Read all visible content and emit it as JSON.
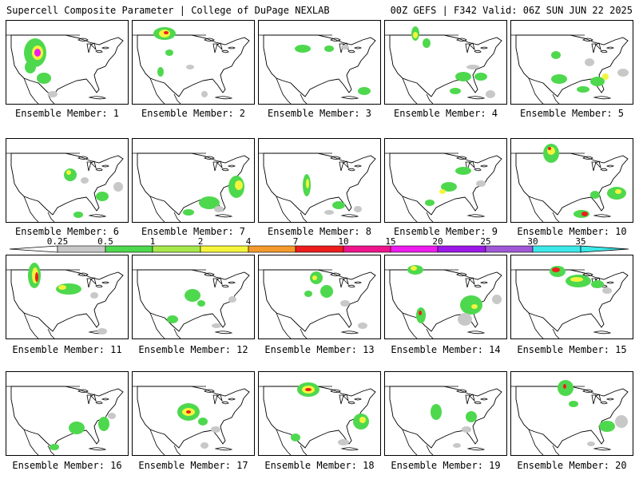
{
  "header": {
    "title": "Supercell Composite Parameter | College of DuPage NEXLAB",
    "run_info": "00Z GEFS | F342 Valid: 06Z SUN JUN 22 2025"
  },
  "member_label_prefix": "Ensemble Member: ",
  "colorbar": {
    "ticks": [
      "0.25",
      "0.5",
      "1",
      "2",
      "4",
      "7",
      "10",
      "15",
      "20",
      "25",
      "30",
      "35"
    ],
    "colors": [
      "#c8c8c8",
      "#4ed84e",
      "#a6e84a",
      "#f4f43c",
      "#f49a2c",
      "#ee1c1c",
      "#f0148c",
      "#ee1cee",
      "#9c18e8",
      "#a058d6",
      "#3ce8e8"
    ]
  },
  "members": [
    {
      "number": "1",
      "blobs": [
        [
          36,
          40,
          14,
          18,
          "#4ed84e"
        ],
        [
          39,
          40,
          7,
          9,
          "#f4f43c"
        ],
        [
          39,
          40,
          4,
          5,
          "#ee1cee"
        ],
        [
          30,
          58,
          7,
          8,
          "#4ed84e"
        ],
        [
          47,
          72,
          9,
          7,
          "#4ed84e"
        ],
        [
          58,
          92,
          6,
          4,
          "#c8c8c8"
        ]
      ]
    },
    {
      "number": "2",
      "blobs": [
        [
          40,
          16,
          14,
          8,
          "#4ed84e"
        ],
        [
          40,
          16,
          7,
          5,
          "#f4f43c"
        ],
        [
          42,
          15,
          3,
          2,
          "#ee1c1c"
        ],
        [
          46,
          40,
          5,
          4,
          "#4ed84e"
        ],
        [
          35,
          64,
          4,
          6,
          "#4ed84e"
        ],
        [
          72,
          58,
          5,
          3,
          "#c8c8c8"
        ],
        [
          90,
          92,
          4,
          4,
          "#c8c8c8"
        ]
      ]
    },
    {
      "number": "3",
      "blobs": [
        [
          55,
          35,
          10,
          5,
          "#4ed84e"
        ],
        [
          88,
          35,
          6,
          4,
          "#4ed84e"
        ],
        [
          108,
          33,
          5,
          3,
          "#c8c8c8"
        ],
        [
          132,
          88,
          8,
          5,
          "#4ed84e"
        ]
      ]
    },
    {
      "number": "4",
      "blobs": [
        [
          38,
          16,
          5,
          9,
          "#4ed84e"
        ],
        [
          38,
          18,
          3,
          4,
          "#f4f43c"
        ],
        [
          52,
          28,
          5,
          6,
          "#4ed84e"
        ],
        [
          98,
          70,
          10,
          6,
          "#4ed84e"
        ],
        [
          120,
          70,
          8,
          5,
          "#4ed84e"
        ],
        [
          110,
          58,
          8,
          3,
          "#c8c8c8"
        ],
        [
          88,
          88,
          7,
          4,
          "#4ed84e"
        ],
        [
          132,
          92,
          6,
          5,
          "#c8c8c8"
        ]
      ]
    },
    {
      "number": "5",
      "blobs": [
        [
          56,
          43,
          6,
          5,
          "#4ed84e"
        ],
        [
          98,
          52,
          6,
          5,
          "#c8c8c8"
        ],
        [
          60,
          73,
          10,
          6,
          "#4ed84e"
        ],
        [
          108,
          76,
          9,
          6,
          "#4ed84e"
        ],
        [
          118,
          70,
          4,
          4,
          "#f4f43c"
        ],
        [
          90,
          86,
          8,
          4,
          "#4ed84e"
        ],
        [
          140,
          65,
          7,
          5,
          "#c8c8c8"
        ]
      ]
    },
    {
      "number": "6",
      "blobs": [
        [
          80,
          45,
          8,
          8,
          "#4ed84e"
        ],
        [
          78,
          42,
          3,
          3,
          "#f4f43c"
        ],
        [
          98,
          52,
          5,
          4,
          "#c8c8c8"
        ],
        [
          120,
          72,
          8,
          6,
          "#4ed84e"
        ],
        [
          140,
          60,
          6,
          6,
          "#c8c8c8"
        ],
        [
          90,
          95,
          6,
          4,
          "#4ed84e"
        ]
      ]
    },
    {
      "number": "7",
      "blobs": [
        [
          130,
          60,
          10,
          14,
          "#4ed84e"
        ],
        [
          133,
          58,
          5,
          6,
          "#f4f43c"
        ],
        [
          96,
          80,
          13,
          8,
          "#4ed84e"
        ],
        [
          108,
          88,
          6,
          4,
          "#c8c8c8"
        ],
        [
          70,
          92,
          7,
          4,
          "#4ed84e"
        ]
      ]
    },
    {
      "number": "8",
      "blobs": [
        [
          60,
          58,
          5,
          14,
          "#4ed84e"
        ],
        [
          61,
          56,
          2,
          6,
          "#f4f43c"
        ],
        [
          100,
          83,
          8,
          5,
          "#4ed84e"
        ],
        [
          124,
          88,
          5,
          4,
          "#c8c8c8"
        ],
        [
          88,
          92,
          6,
          3,
          "#c8c8c8"
        ]
      ]
    },
    {
      "number": "9",
      "blobs": [
        [
          98,
          40,
          10,
          5,
          "#4ed84e"
        ],
        [
          80,
          60,
          10,
          6,
          "#4ed84e"
        ],
        [
          72,
          66,
          4,
          3,
          "#f4f43c"
        ],
        [
          56,
          80,
          6,
          4,
          "#4ed84e"
        ],
        [
          120,
          56,
          6,
          4,
          "#c8c8c8"
        ]
      ]
    },
    {
      "number": "10",
      "blobs": [
        [
          50,
          18,
          10,
          12,
          "#4ed84e"
        ],
        [
          50,
          15,
          5,
          5,
          "#f4f43c"
        ],
        [
          48,
          12,
          2,
          2,
          "#ee1c1c"
        ],
        [
          105,
          70,
          6,
          5,
          "#4ed84e"
        ],
        [
          132,
          68,
          12,
          8,
          "#4ed84e"
        ],
        [
          134,
          66,
          4,
          3,
          "#f4f43c"
        ],
        [
          88,
          94,
          10,
          5,
          "#4ed84e"
        ],
        [
          92,
          94,
          4,
          3,
          "#ee1c1c"
        ]
      ]
    },
    {
      "number": "11",
      "blobs": [
        [
          35,
          25,
          8,
          16,
          "#4ed84e"
        ],
        [
          36,
          25,
          4,
          10,
          "#f4f43c"
        ],
        [
          38,
          27,
          2,
          6,
          "#ee1c1c"
        ],
        [
          78,
          42,
          16,
          7,
          "#4ed84e"
        ],
        [
          70,
          40,
          5,
          3,
          "#f4f43c"
        ],
        [
          110,
          50,
          5,
          4,
          "#c8c8c8"
        ],
        [
          120,
          95,
          6,
          4,
          "#c8c8c8"
        ]
      ]
    },
    {
      "number": "12",
      "blobs": [
        [
          75,
          50,
          10,
          8,
          "#4ed84e"
        ],
        [
          86,
          60,
          5,
          4,
          "#4ed84e"
        ],
        [
          50,
          80,
          7,
          5,
          "#4ed84e"
        ],
        [
          105,
          88,
          6,
          3,
          "#c8c8c8"
        ],
        [
          125,
          55,
          5,
          4,
          "#c8c8c8"
        ]
      ]
    },
    {
      "number": "13",
      "blobs": [
        [
          72,
          28,
          8,
          8,
          "#4ed84e"
        ],
        [
          70,
          28,
          3,
          3,
          "#f4f43c"
        ],
        [
          85,
          45,
          8,
          8,
          "#4ed84e"
        ],
        [
          62,
          48,
          5,
          4,
          "#4ed84e"
        ],
        [
          108,
          60,
          6,
          4,
          "#c8c8c8"
        ],
        [
          130,
          88,
          6,
          4,
          "#c8c8c8"
        ]
      ]
    },
    {
      "number": "14",
      "blobs": [
        [
          38,
          18,
          10,
          6,
          "#4ed84e"
        ],
        [
          36,
          16,
          4,
          3,
          "#f4f43c"
        ],
        [
          45,
          75,
          6,
          10,
          "#4ed84e"
        ],
        [
          44,
          72,
          2,
          3,
          "#ee1c1c"
        ],
        [
          108,
          62,
          14,
          12,
          "#4ed84e"
        ],
        [
          112,
          64,
          4,
          3,
          "#f4f43c"
        ],
        [
          100,
          80,
          9,
          8,
          "#c8c8c8"
        ],
        [
          140,
          55,
          6,
          6,
          "#c8c8c8"
        ]
      ]
    },
    {
      "number": "15",
      "blobs": [
        [
          58,
          20,
          10,
          7,
          "#4ed84e"
        ],
        [
          56,
          18,
          5,
          3,
          "#ee1c1c"
        ],
        [
          84,
          32,
          16,
          8,
          "#4ed84e"
        ],
        [
          82,
          30,
          8,
          3,
          "#f4f43c"
        ],
        [
          108,
          36,
          8,
          5,
          "#4ed84e"
        ],
        [
          120,
          44,
          6,
          4,
          "#c8c8c8"
        ]
      ]
    },
    {
      "number": "16",
      "blobs": [
        [
          88,
          70,
          10,
          8,
          "#4ed84e"
        ],
        [
          122,
          65,
          7,
          9,
          "#4ed84e"
        ],
        [
          60,
          94,
          6,
          4,
          "#4ed84e"
        ],
        [
          132,
          55,
          5,
          4,
          "#c8c8c8"
        ]
      ]
    },
    {
      "number": "17",
      "blobs": [
        [
          70,
          50,
          14,
          11,
          "#4ed84e"
        ],
        [
          70,
          50,
          8,
          5,
          "#f4f43c"
        ],
        [
          70,
          50,
          3,
          2,
          "#ee1c1c"
        ],
        [
          88,
          62,
          6,
          5,
          "#4ed84e"
        ],
        [
          104,
          72,
          6,
          4,
          "#c8c8c8"
        ],
        [
          90,
          92,
          5,
          4,
          "#c8c8c8"
        ]
      ]
    },
    {
      "number": "18",
      "blobs": [
        [
          62,
          22,
          14,
          9,
          "#4ed84e"
        ],
        [
          62,
          22,
          8,
          5,
          "#f4f43c"
        ],
        [
          62,
          22,
          4,
          2,
          "#ee1c1c"
        ],
        [
          128,
          62,
          10,
          10,
          "#4ed84e"
        ],
        [
          130,
          60,
          4,
          4,
          "#f4f43c"
        ],
        [
          46,
          82,
          6,
          5,
          "#4ed84e"
        ],
        [
          106,
          88,
          7,
          4,
          "#c8c8c8"
        ]
      ]
    },
    {
      "number": "19",
      "blobs": [
        [
          64,
          50,
          7,
          10,
          "#4ed84e"
        ],
        [
          108,
          56,
          7,
          7,
          "#4ed84e"
        ],
        [
          102,
          72,
          6,
          4,
          "#c8c8c8"
        ],
        [
          90,
          92,
          5,
          3,
          "#c8c8c8"
        ]
      ]
    },
    {
      "number": "20",
      "blobs": [
        [
          68,
          20,
          10,
          10,
          "#4ed84e"
        ],
        [
          67,
          18,
          2,
          3,
          "#ee1c1c"
        ],
        [
          78,
          40,
          6,
          4,
          "#4ed84e"
        ],
        [
          120,
          68,
          10,
          7,
          "#4ed84e"
        ],
        [
          138,
          62,
          8,
          8,
          "#c8c8c8"
        ],
        [
          100,
          90,
          5,
          3,
          "#c8c8c8"
        ]
      ]
    }
  ]
}
